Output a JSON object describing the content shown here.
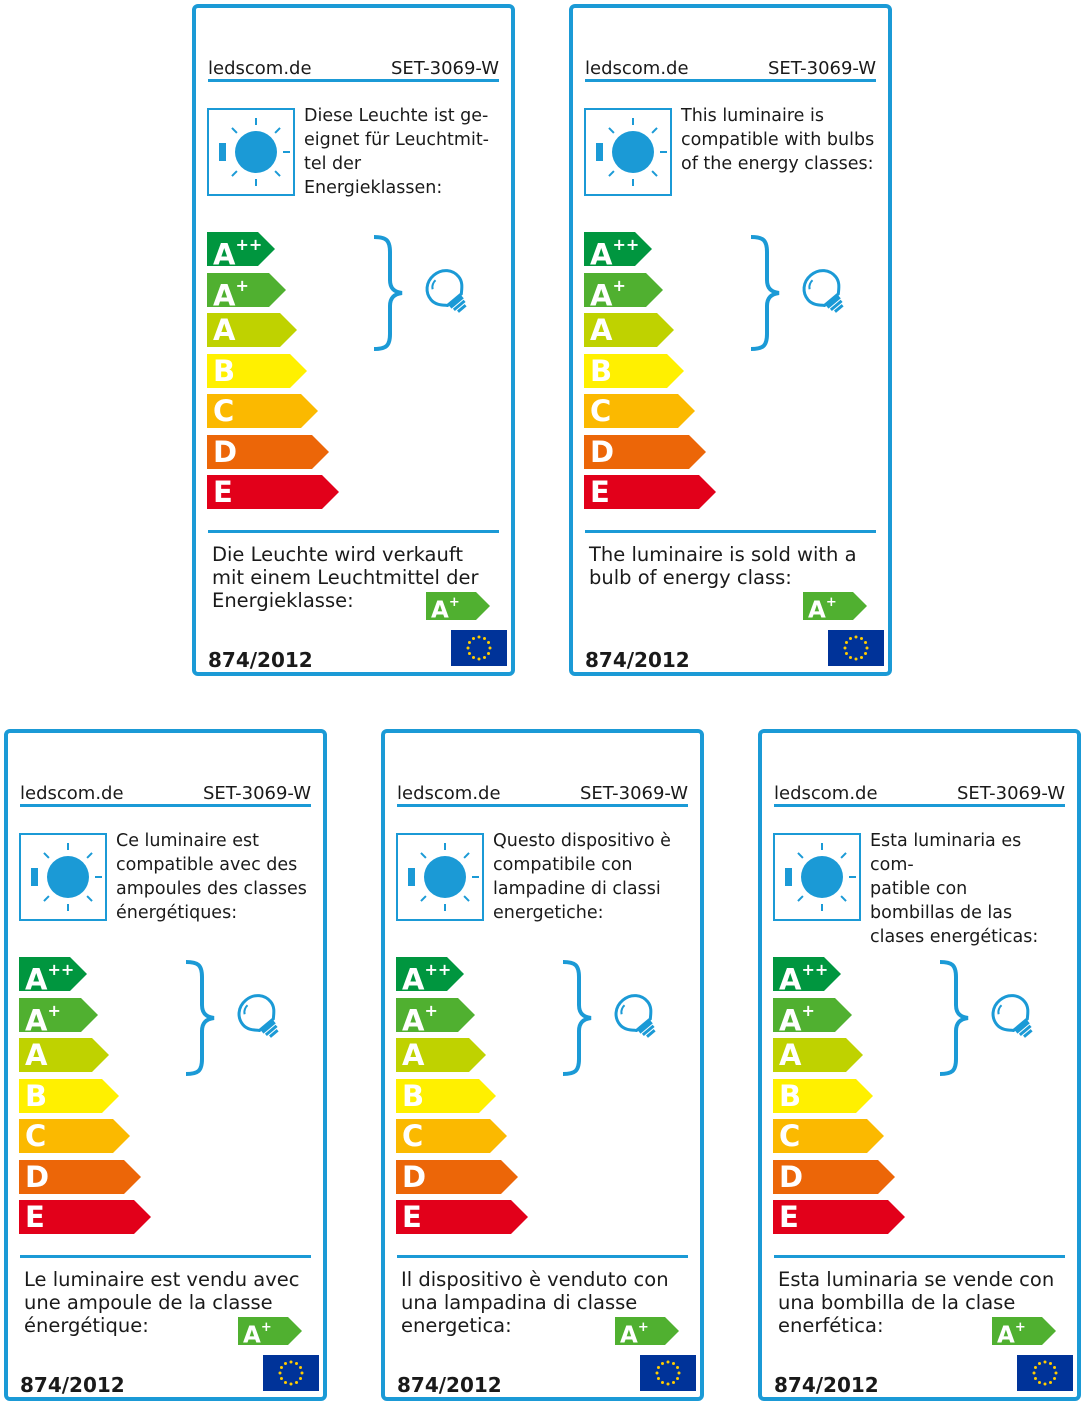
{
  "labels": [
    {
      "lang": "de",
      "brand": "ledscom.de",
      "model": "SET-3069-W",
      "compat_lines": [
        "Diese Leuchte ist ge-",
        "eignet für Leuchtmit-",
        "tel der Energieklassen:"
      ],
      "sold_lines": [
        "Die Leuchte wird verkauft",
        "mit einem Leuchtmittel der",
        "Energieklasse:"
      ],
      "regulation": "874/2012"
    },
    {
      "lang": "en",
      "brand": "ledscom.de",
      "model": "SET-3069-W",
      "compat_lines": [
        "This luminaire is",
        "compatible with bulbs",
        "of the energy classes:"
      ],
      "sold_lines": [
        "The luminaire is sold with a",
        "bulb of energy class:"
      ],
      "regulation": "874/2012"
    },
    {
      "lang": "fr",
      "brand": "ledscom.de",
      "model": "SET-3069-W",
      "compat_lines": [
        "Ce luminaire est",
        "compatible avec des",
        "ampoules des classes",
        "énergétiques:"
      ],
      "sold_lines": [
        "Le luminaire est vendu avec",
        "une ampoule de la classe",
        "énergétique:"
      ],
      "regulation": "874/2012"
    },
    {
      "lang": "it",
      "brand": "ledscom.de",
      "model": "SET-3069-W",
      "compat_lines": [
        "Questo dispositivo è",
        "compatibile con",
        "lampadine di classi",
        "energetiche:"
      ],
      "sold_lines": [
        "Il dispositivo è venduto con",
        "una lampadina di classe",
        "energetica:"
      ],
      "regulation": "874/2012"
    },
    {
      "lang": "es",
      "brand": "ledscom.de",
      "model": "SET-3069-W",
      "compat_lines": [
        "Esta luminaria es com-",
        "patible con",
        "bombillas de las",
        "clases energéticas:"
      ],
      "sold_lines": [
        "Esta luminaria se vende con",
        "una bombilla de la clase",
        "enerfética:"
      ],
      "regulation": "874/2012"
    }
  ],
  "energy_classes": [
    {
      "letter": "A",
      "sup": "++",
      "color": "#00963f"
    },
    {
      "letter": "A",
      "sup": "+",
      "color": "#50b030"
    },
    {
      "letter": "A",
      "sup": "",
      "color": "#bfd200"
    },
    {
      "letter": "B",
      "sup": "",
      "color": "#fff000"
    },
    {
      "letter": "C",
      "sup": "",
      "color": "#fbb900"
    },
    {
      "letter": "D",
      "sup": "",
      "color": "#ec6608"
    },
    {
      "letter": "E",
      "sup": "",
      "color": "#e2001a"
    }
  ],
  "compatible_range": [
    "A++",
    "A+"
  ],
  "sold_class": {
    "letter": "A",
    "sup": "+",
    "color": "#50b030"
  },
  "colors": {
    "frame": "#1b9ad6",
    "sun": "#1b9ad6",
    "eu_blue": "#003399",
    "eu_star": "#ffcc00"
  },
  "icons": [
    "lamp-sun-icon",
    "bulb-icon",
    "eu-flag-icon"
  ]
}
